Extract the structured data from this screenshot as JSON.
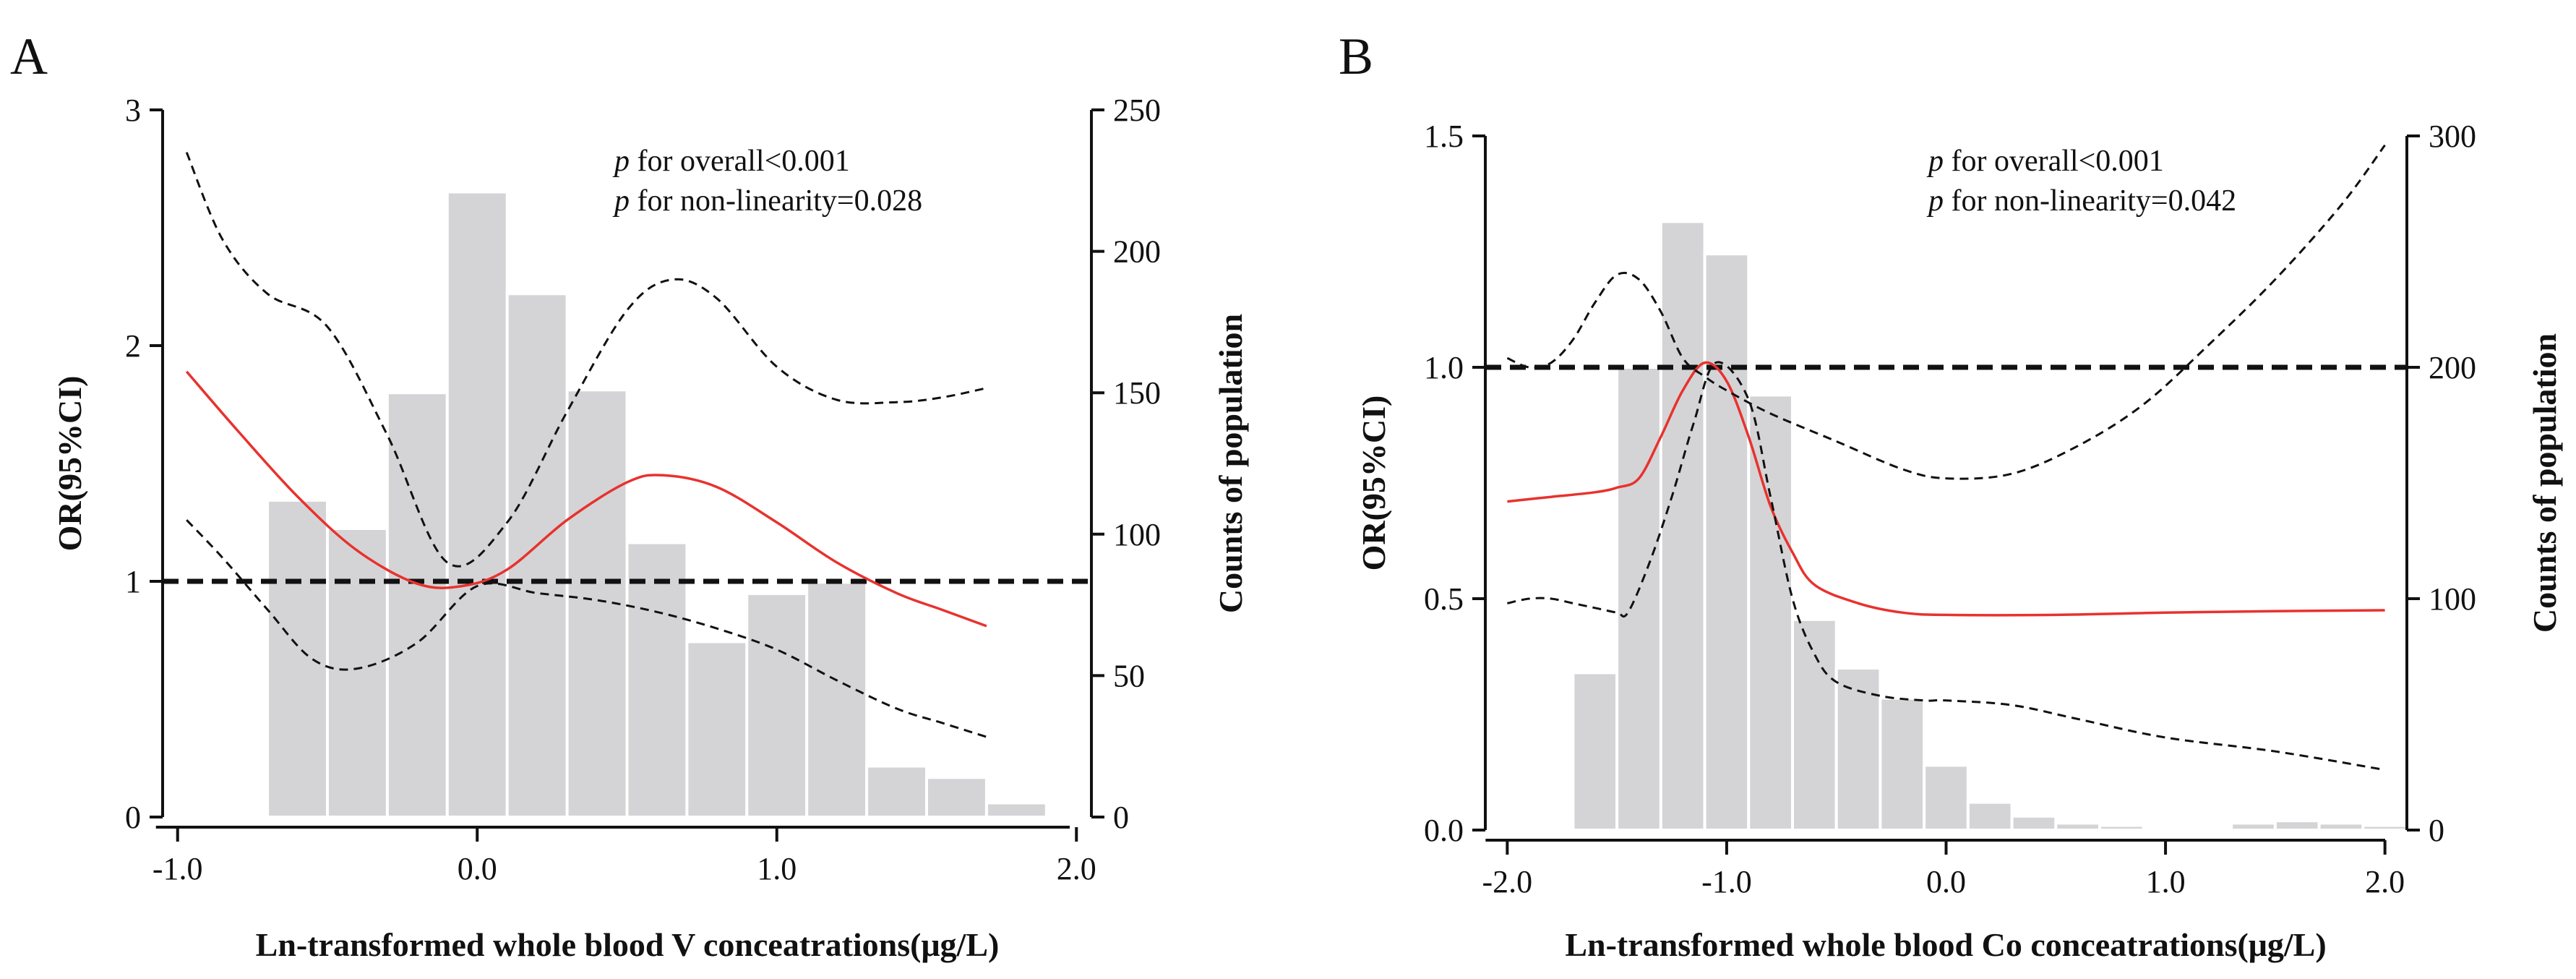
{
  "chart_data": [
    {
      "type": "bar",
      "panel": "A",
      "xlabel": "Ln-transformed whole blood V conceatrations(μg/L)",
      "ylabel_left": "OR(95%CI)",
      "ylabel_right": "Counts of population",
      "xlim": [
        -1.05,
        2.05
      ],
      "ylim_left": [
        0,
        3
      ],
      "ylim_right": [
        0,
        250
      ],
      "x_ticks": [
        -1.0,
        0.0,
        1.0,
        2.0
      ],
      "x_tick_labels": [
        "-1.0",
        "0.0",
        "1.0",
        "2.0"
      ],
      "y_left_ticks": [
        0,
        1,
        2,
        3
      ],
      "y_left_tick_labels": [
        "0",
        "1",
        "2",
        "3"
      ],
      "y_right_ticks": [
        0,
        50,
        100,
        150,
        200,
        250
      ],
      "y_right_tick_labels": [
        "0",
        "50",
        "100",
        "150",
        "200",
        "250"
      ],
      "reference_line": 1,
      "annotations": [
        {
          "p": "p",
          "text": " for overall<0.001"
        },
        {
          "p": "p",
          "text": " for non-linearity=0.028"
        }
      ],
      "bin_width": 0.2,
      "histogram": {
        "bin_starts": [
          -0.7,
          -0.5,
          -0.3,
          -0.1,
          0.1,
          0.3,
          0.5,
          0.7,
          0.9,
          1.1,
          1.3,
          1.5,
          1.7
        ],
        "counts": [
          112,
          102,
          150,
          221,
          185,
          151,
          97,
          62,
          79,
          83,
          18,
          14,
          5
        ]
      },
      "series": [
        {
          "name": "OR",
          "color": "#e8322e",
          "x": [
            -0.97,
            -0.8,
            -0.6,
            -0.4,
            -0.2,
            -0.05,
            0.1,
            0.3,
            0.5,
            0.62,
            0.8,
            1.0,
            1.2,
            1.4,
            1.55,
            1.7
          ],
          "y": [
            1.89,
            1.64,
            1.36,
            1.13,
            0.99,
            0.98,
            1.05,
            1.26,
            1.42,
            1.45,
            1.4,
            1.25,
            1.08,
            0.95,
            0.88,
            0.81
          ]
        },
        {
          "name": "Upper 95% CI",
          "color": "#111111",
          "x": [
            -0.97,
            -0.85,
            -0.7,
            -0.5,
            -0.3,
            -0.1,
            0.1,
            0.3,
            0.5,
            0.65,
            0.8,
            1.0,
            1.2,
            1.4,
            1.55,
            1.7
          ],
          "y": [
            2.82,
            2.45,
            2.22,
            2.08,
            1.62,
            1.08,
            1.25,
            1.72,
            2.15,
            2.28,
            2.2,
            1.91,
            1.77,
            1.76,
            1.78,
            1.82
          ]
        },
        {
          "name": "Lower 95% CI",
          "color": "#111111",
          "x": [
            -0.97,
            -0.85,
            -0.7,
            -0.55,
            -0.4,
            -0.2,
            0.0,
            0.2,
            0.4,
            0.6,
            0.8,
            1.0,
            1.2,
            1.4,
            1.55,
            1.7
          ],
          "y": [
            1.26,
            1.1,
            0.88,
            0.67,
            0.63,
            0.74,
            0.98,
            0.95,
            0.92,
            0.87,
            0.8,
            0.71,
            0.58,
            0.46,
            0.4,
            0.34
          ]
        }
      ]
    },
    {
      "type": "bar",
      "panel": "B",
      "xlabel": "Ln-transformed whole blood Co conceatrations(μg/L)",
      "ylabel_left": "OR(95%CI)",
      "ylabel_right": "Counts of population",
      "xlim": [
        -2.1,
        2.1
      ],
      "ylim_left": [
        0,
        1.5
      ],
      "ylim_right": [
        0,
        300
      ],
      "x_ticks": [
        -2.0,
        -1.0,
        0.0,
        1.0,
        2.0
      ],
      "x_tick_labels": [
        "-2.0",
        "-1.0",
        "0.0",
        "1.0",
        "2.0"
      ],
      "y_left_ticks": [
        0,
        0.5,
        1.0,
        1.5
      ],
      "y_left_tick_labels": [
        "0.0",
        "0.5",
        "1.0",
        "1.5"
      ],
      "y_right_ticks": [
        0,
        100,
        200,
        300
      ],
      "y_right_tick_labels": [
        "0",
        "100",
        "200",
        "300"
      ],
      "reference_line": 1,
      "annotations": [
        {
          "p": "p",
          "text": " for overall<0.001"
        },
        {
          "p": "p",
          "text": " for non-linearity=0.042"
        }
      ],
      "bin_width": 0.2,
      "histogram": {
        "bin_starts": [
          -1.7,
          -1.5,
          -1.3,
          -1.1,
          -0.9,
          -0.7,
          -0.5,
          -0.3,
          -0.1,
          0.1,
          0.3,
          0.5,
          0.7,
          0.9,
          1.1,
          1.3,
          1.5,
          1.7,
          1.9
        ],
        "counts": [
          68,
          200,
          263,
          249,
          188,
          91,
          70,
          57,
          28,
          12,
          6,
          3,
          2,
          1,
          1,
          3,
          4,
          3,
          2
        ]
      },
      "series": [
        {
          "name": "OR",
          "color": "#e8322e",
          "x": [
            -2.0,
            -1.8,
            -1.6,
            -1.5,
            -1.4,
            -1.3,
            -1.2,
            -1.1,
            -1.0,
            -0.9,
            -0.8,
            -0.7,
            -0.6,
            -0.4,
            -0.2,
            0.0,
            0.5,
            1.0,
            1.5,
            2.0
          ],
          "y": [
            0.71,
            0.72,
            0.73,
            0.74,
            0.76,
            0.85,
            0.95,
            1.01,
            0.97,
            0.85,
            0.7,
            0.6,
            0.53,
            0.49,
            0.47,
            0.465,
            0.465,
            0.47,
            0.473,
            0.475
          ]
        },
        {
          "name": "Upper 95% CI",
          "color": "#111111",
          "x": [
            -2.0,
            -1.9,
            -1.8,
            -1.7,
            -1.6,
            -1.5,
            -1.4,
            -1.3,
            -1.2,
            -1.1,
            -1.0,
            -0.8,
            -0.5,
            -0.2,
            0.0,
            0.3,
            0.6,
            0.9,
            1.2,
            1.5,
            1.8,
            2.0
          ],
          "y": [
            1.02,
            1.0,
            1.01,
            1.06,
            1.14,
            1.2,
            1.19,
            1.12,
            1.02,
            0.98,
            0.95,
            0.9,
            0.84,
            0.78,
            0.76,
            0.77,
            0.83,
            0.92,
            1.05,
            1.19,
            1.35,
            1.48
          ]
        },
        {
          "name": "Lower 95% CI",
          "color": "#111111",
          "x": [
            -2.0,
            -1.9,
            -1.8,
            -1.7,
            -1.6,
            -1.5,
            -1.45,
            -1.35,
            -1.25,
            -1.15,
            -1.05,
            -0.9,
            -0.8,
            -0.7,
            -0.6,
            -0.5,
            -0.3,
            -0.1,
            0.0,
            0.3,
            0.6,
            1.0,
            1.5,
            2.0
          ],
          "y": [
            0.49,
            0.5,
            0.5,
            0.49,
            0.48,
            0.47,
            0.47,
            0.58,
            0.72,
            0.88,
            1.01,
            0.93,
            0.72,
            0.5,
            0.38,
            0.32,
            0.29,
            0.28,
            0.28,
            0.27,
            0.24,
            0.2,
            0.17,
            0.13
          ]
        }
      ]
    }
  ]
}
